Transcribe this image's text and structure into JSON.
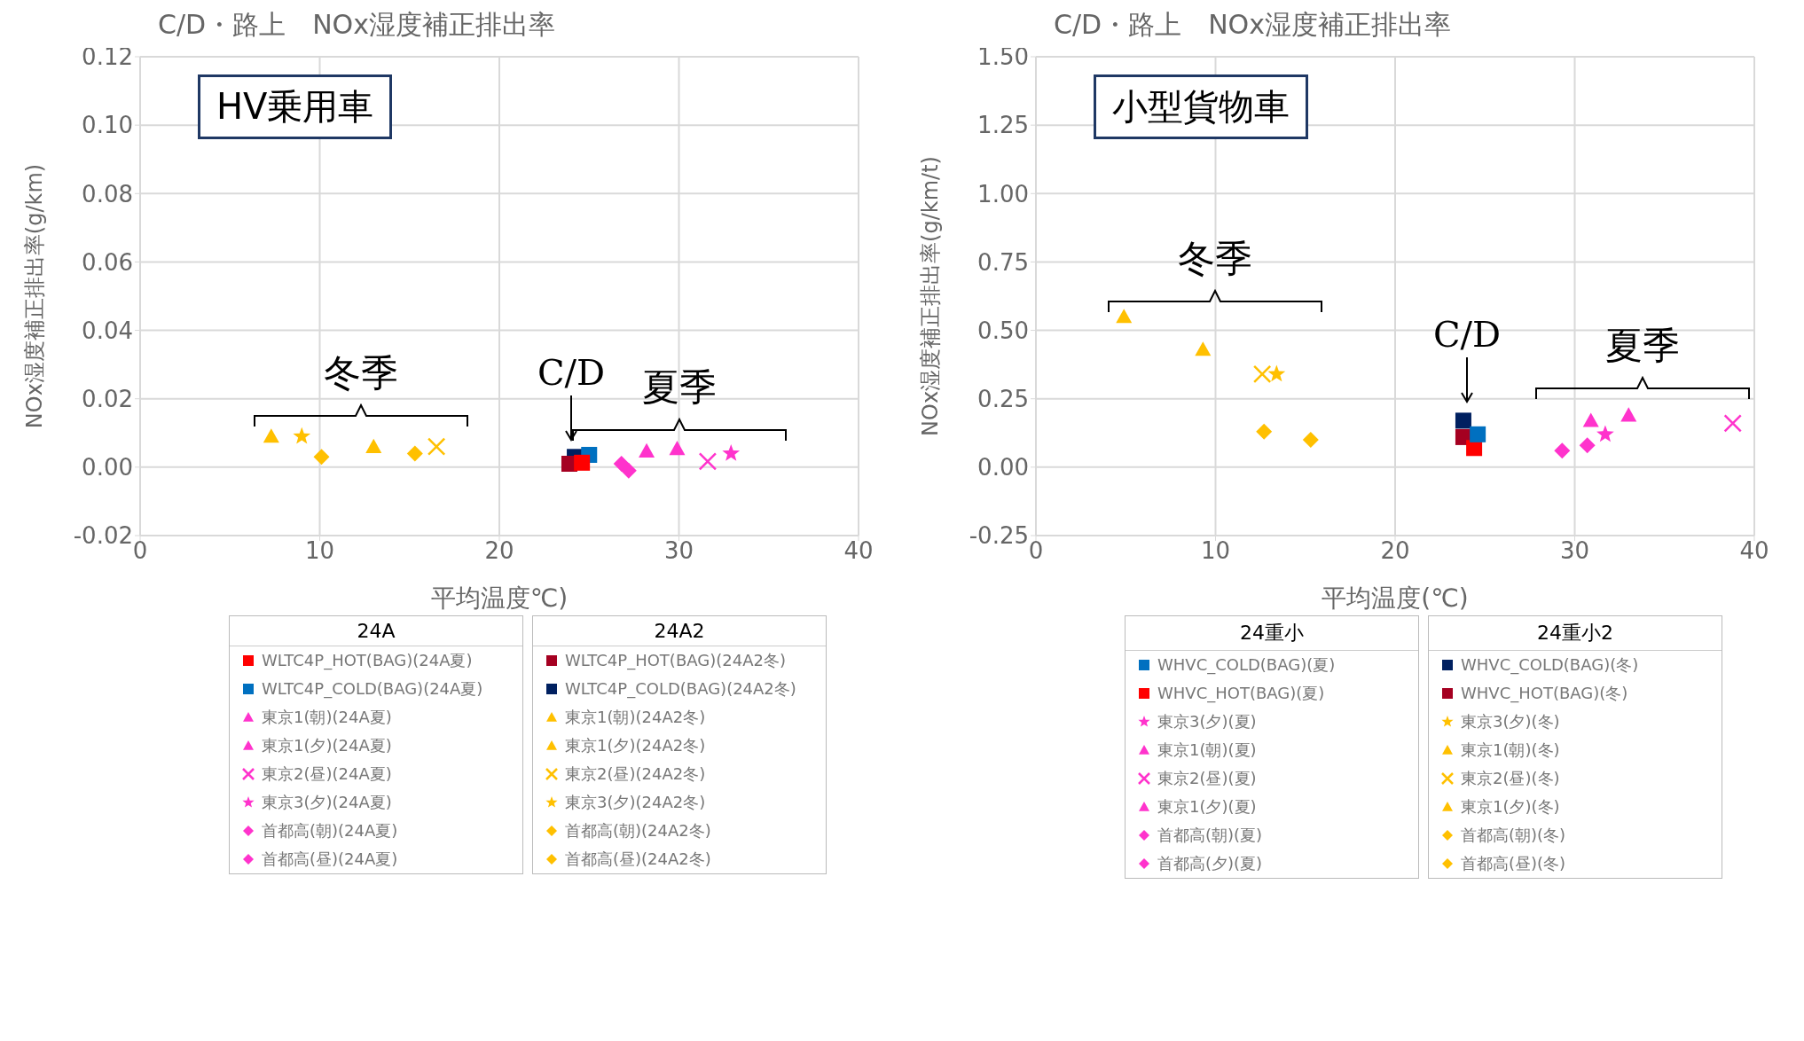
{
  "chart_data": [
    {
      "type": "scatter",
      "title": "C/D・路上　NOx湿度補正排出率",
      "xlabel": "平均温度℃)",
      "ylabel": "NOx湿度補正排出率(g/km)",
      "xlim": [
        0,
        40
      ],
      "xticks": [
        0,
        10,
        20,
        30,
        40
      ],
      "ylim": [
        -0.02,
        0.12
      ],
      "yticks": [
        {
          "value": -0.02,
          "label": "-0.02"
        },
        {
          "value": 0,
          "label": "0.00"
        },
        {
          "value": 0.02,
          "label": "0.02"
        },
        {
          "value": 0.04,
          "label": "0.04"
        },
        {
          "value": 0.06,
          "label": "0.06"
        },
        {
          "value": 0.08,
          "label": "0.08"
        },
        {
          "value": 0.1,
          "label": "0.10"
        },
        {
          "value": 0.12,
          "label": "0.12"
        }
      ],
      "grid": true,
      "legend": "bottom",
      "annotations": [
        "HV乗用車",
        "冬季",
        "C/D",
        "夏季",
        "24A",
        "24A2"
      ],
      "series": [
        {
          "name": "WLTC4P_HOT(BAG)(24A夏)",
          "color": "#ff0000",
          "marker": "square",
          "x": [
            24.6
          ],
          "values": [
            0.0013
          ]
        },
        {
          "name": "WLTC4P_COLD(BAG)(24A夏)",
          "color": "#0070c0",
          "marker": "square",
          "x": [
            25.0
          ],
          "values": [
            0.0036
          ]
        },
        {
          "name": "東京1(朝)(24A夏)",
          "color": "#ff33cc",
          "marker": "triangle",
          "x": [
            28.2
          ],
          "values": [
            0.0047
          ]
        },
        {
          "name": "東京1(夕)(24A夏)",
          "color": "#ff33cc",
          "marker": "triangle",
          "x": [
            29.9
          ],
          "values": [
            0.0054
          ]
        },
        {
          "name": "東京2(昼)(24A夏)",
          "color": "#ff33cc",
          "marker": "cross",
          "x": [
            31.6
          ],
          "values": [
            0.0017
          ]
        },
        {
          "name": "東京3(夕)(24A夏)",
          "color": "#ff33cc",
          "marker": "star",
          "x": [
            32.9
          ],
          "values": [
            0.004
          ]
        },
        {
          "name": "首都高(朝)(24A夏)",
          "color": "#ff33cc",
          "marker": "diamond",
          "x": [
            27.2
          ],
          "values": [
            -0.001
          ]
        },
        {
          "name": "首都高(昼)(24A夏)",
          "color": "#ff33cc",
          "marker": "diamond",
          "x": [
            26.8
          ],
          "values": [
            0.001
          ]
        },
        {
          "name": "WLTC4P_HOT(BAG)(24A2冬)",
          "color": "#a50021",
          "marker": "square",
          "x": [
            23.9
          ],
          "values": [
            0.001
          ]
        },
        {
          "name": "WLTC4P_COLD(BAG)(24A2冬)",
          "color": "#002060",
          "marker": "square",
          "x": [
            24.2
          ],
          "values": [
            0.003
          ]
        },
        {
          "name": "東京1(朝)(24A2冬)",
          "color": "#ffc000",
          "marker": "triangle",
          "x": [
            7.3
          ],
          "values": [
            0.009
          ]
        },
        {
          "name": "東京1(夕)(24A2冬)",
          "color": "#ffc000",
          "marker": "triangle",
          "x": [
            13.0
          ],
          "values": [
            0.006
          ]
        },
        {
          "name": "東京2(昼)(24A2冬)",
          "color": "#ffc000",
          "marker": "cross",
          "x": [
            16.5
          ],
          "values": [
            0.006
          ]
        },
        {
          "name": "東京3(夕)(24A2冬)",
          "color": "#ffc000",
          "marker": "star",
          "x": [
            9.0
          ],
          "values": [
            0.009
          ]
        },
        {
          "name": "首都高(朝)(24A2冬)",
          "color": "#ffc000",
          "marker": "diamond",
          "x": [
            10.1
          ],
          "values": [
            0.003
          ]
        },
        {
          "name": "首都高(昼)(24A2冬)",
          "color": "#ffc000",
          "marker": "diamond",
          "x": [
            15.3
          ],
          "values": [
            0.004
          ]
        }
      ]
    },
    {
      "type": "scatter",
      "title": "C/D・路上　NOx湿度補正排出率",
      "xlabel": "平均温度(℃)",
      "ylabel": "NOx湿度補正排出率(g/km/t)",
      "xlim": [
        0,
        40
      ],
      "xticks": [
        0,
        10,
        20,
        30,
        40
      ],
      "ylim": [
        -0.25,
        1.5
      ],
      "yticks": [
        {
          "value": -0.25,
          "label": "-0.25"
        },
        {
          "value": 0,
          "label": "0.00"
        },
        {
          "value": 0.25,
          "label": "0.25"
        },
        {
          "value": 0.5,
          "label": "0.50"
        },
        {
          "value": 0.75,
          "label": "0.75"
        },
        {
          "value": 1,
          "label": "1.00"
        },
        {
          "value": 1.25,
          "label": "1.25"
        },
        {
          "value": 1.5,
          "label": "1.50"
        }
      ],
      "grid": true,
      "legend": "bottom",
      "annotations": [
        "小型貨物車",
        "冬季",
        "C/D",
        "夏季",
        "24重小",
        "24重小2"
      ],
      "series": [
        {
          "name": "WHVC_COLD(BAG)(夏)",
          "color": "#0070c0",
          "marker": "square",
          "x": [
            24.6
          ],
          "values": [
            0.12
          ]
        },
        {
          "name": "WHVC_HOT(BAG)(夏)",
          "color": "#ff0000",
          "marker": "square",
          "x": [
            24.4
          ],
          "values": [
            0.07
          ]
        },
        {
          "name": "東京3(夕)(夏)",
          "color": "#ff33cc",
          "marker": "star",
          "x": [
            31.7
          ],
          "values": [
            0.12
          ]
        },
        {
          "name": "東京1(朝)(夏)",
          "color": "#ff33cc",
          "marker": "triangle",
          "x": [
            33.0
          ],
          "values": [
            0.19
          ]
        },
        {
          "name": "東京2(昼)(夏)",
          "color": "#ff33cc",
          "marker": "cross",
          "x": [
            38.8
          ],
          "values": [
            0.16
          ]
        },
        {
          "name": "東京1(夕)(夏)",
          "color": "#ff33cc",
          "marker": "triangle",
          "x": [
            30.9
          ],
          "values": [
            0.17
          ]
        },
        {
          "name": "首都高(朝)(夏)",
          "color": "#ff33cc",
          "marker": "diamond",
          "x": [
            29.3
          ],
          "values": [
            0.06
          ]
        },
        {
          "name": "首都高(夕)(夏)",
          "color": "#ff33cc",
          "marker": "diamond",
          "x": [
            30.7
          ],
          "values": [
            0.08
          ]
        },
        {
          "name": "WHVC_COLD(BAG)(冬)",
          "color": "#002060",
          "marker": "square",
          "x": [
            23.8
          ],
          "values": [
            0.17
          ]
        },
        {
          "name": "WHVC_HOT(BAG)(冬)",
          "color": "#a50021",
          "marker": "square",
          "x": [
            23.8
          ],
          "values": [
            0.11
          ]
        },
        {
          "name": "東京3(夕)(冬)",
          "color": "#ffc000",
          "marker": "star",
          "x": [
            13.4
          ],
          "values": [
            0.34
          ]
        },
        {
          "name": "東京1(朝)(冬)",
          "color": "#ffc000",
          "marker": "triangle",
          "x": [
            4.9
          ],
          "values": [
            0.55
          ]
        },
        {
          "name": "東京2(昼)(冬)",
          "color": "#ffc000",
          "marker": "cross",
          "x": [
            12.6
          ],
          "values": [
            0.34
          ]
        },
        {
          "name": "東京1(夕)(冬)",
          "color": "#ffc000",
          "marker": "triangle",
          "x": [
            9.3
          ],
          "values": [
            0.43
          ]
        },
        {
          "name": "首都高(朝)(冬)",
          "color": "#ffc000",
          "marker": "diamond",
          "x": [
            12.7
          ],
          "values": [
            0.13
          ]
        },
        {
          "name": "首都高(昼)(冬)",
          "color": "#ffc000",
          "marker": "diamond",
          "x": [
            15.3
          ],
          "values": [
            0.1
          ]
        }
      ]
    }
  ]
}
